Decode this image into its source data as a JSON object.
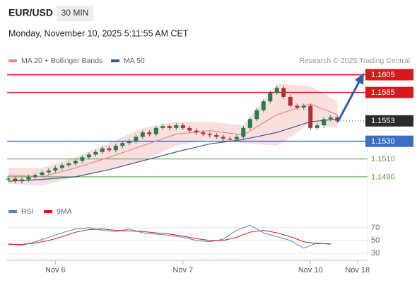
{
  "header": {
    "symbol": "EUR/USD",
    "timeframe": "30 MIN",
    "datetime": "Monday, November 10, 2025 5:11:55 AM CET",
    "credit": "Research © 2025 Trading Central"
  },
  "chart_data": {
    "type": "candlestick",
    "xlim": [
      -0.2,
      53.5
    ],
    "xticks": [
      {
        "value": 7,
        "label": "Nov 6"
      },
      {
        "value": 26,
        "label": "Nov 7"
      },
      {
        "value": 45,
        "label": "Nov 10"
      },
      {
        "value": 52,
        "label": "Nov 18"
      }
    ],
    "ylim": [
      1.1466,
      1.1619
    ],
    "close": [
      1.1488,
      1.1485,
      1.1487,
      1.149,
      1.1492,
      1.1495,
      1.1497,
      1.15,
      1.1503,
      1.1505,
      1.1508,
      1.1512,
      1.1515,
      1.1518,
      1.1522,
      1.152,
      1.1525,
      1.1528,
      1.153,
      1.1535,
      1.154,
      1.1538,
      1.1545,
      1.1547,
      1.1545,
      1.1548,
      1.1545,
      1.1542,
      1.154,
      1.1538,
      1.1537,
      1.1535,
      1.1533,
      1.1532,
      1.1535,
      1.1545,
      1.1555,
      1.1565,
      1.1575,
      1.1585,
      1.159,
      1.158,
      1.157,
      1.1568,
      1.157,
      1.1545,
      1.1548,
      1.1555,
      1.1557,
      1.1553
    ],
    "up_color": "#2a7a4a",
    "down_color": "#b03030",
    "series": [
      {
        "name": "MA 20 + Bollinger Bands",
        "color": "#e88a8a",
        "band_color": "#f6c9c9",
        "x": [
          0,
          5,
          10,
          15,
          20,
          25,
          30,
          35,
          40,
          45,
          49
        ],
        "values": [
          1.1492,
          1.149,
          1.15,
          1.1512,
          1.1525,
          1.1538,
          1.1542,
          1.1537,
          1.156,
          1.1572,
          1.156
        ],
        "upper": [
          1.15,
          1.15,
          1.1512,
          1.1528,
          1.1545,
          1.1552,
          1.1552,
          1.1548,
          1.1595,
          1.1592,
          1.1575
        ],
        "lower": [
          1.1482,
          1.148,
          1.149,
          1.1498,
          1.1508,
          1.1525,
          1.1532,
          1.1528,
          1.1525,
          1.155,
          1.1545
        ]
      },
      {
        "name": "MA 50",
        "color": "#3c5a8c",
        "x": [
          0,
          5,
          10,
          15,
          20,
          25,
          30,
          35,
          40,
          45,
          49
        ],
        "values": [
          1.1485,
          1.1487,
          1.149,
          1.1498,
          1.1508,
          1.1518,
          1.1527,
          1.1532,
          1.154,
          1.1552,
          1.1555
        ]
      }
    ],
    "levels": [
      {
        "value": 1.1605,
        "label": "1.1605",
        "color": "#d41a1a",
        "filled": true
      },
      {
        "value": 1.1585,
        "label": "1.1585",
        "color": "#d41a1a",
        "filled": true
      },
      {
        "value": 1.1553,
        "label": "1.1553",
        "color": "#2b2b2b",
        "filled": true,
        "dotted": true
      },
      {
        "value": 1.153,
        "label": "1.1530",
        "color": "#3a6fc4",
        "filled": true
      },
      {
        "value": 1.151,
        "label": "1.1510",
        "color": "#5a9a4a",
        "filled": false
      },
      {
        "value": 1.149,
        "label": "1.1490",
        "color": "#5a9a4a",
        "filled": false
      }
    ],
    "rsi": {
      "ylim": [
        15,
        92
      ],
      "yticks": [
        30,
        50,
        70
      ],
      "x": [
        0,
        2,
        4,
        6,
        8,
        10,
        12,
        14,
        16,
        18,
        20,
        22,
        24,
        26,
        28,
        30,
        32,
        34,
        36,
        38,
        40,
        42,
        44,
        46,
        48
      ],
      "series": [
        {
          "name": "RSI",
          "color": "#5b7fc7",
          "values": [
            45,
            42,
            48,
            55,
            62,
            68,
            70,
            66,
            64,
            68,
            62,
            60,
            58,
            55,
            50,
            48,
            52,
            66,
            74,
            62,
            56,
            50,
            38,
            46,
            44
          ]
        },
        {
          "name": "9MA",
          "color": "#d41a1a",
          "values": [
            44,
            44,
            46,
            50,
            56,
            63,
            67,
            68,
            66,
            65,
            64,
            62,
            60,
            57,
            53,
            50,
            50,
            55,
            63,
            66,
            62,
            56,
            48,
            45,
            45
          ]
        }
      ]
    }
  }
}
